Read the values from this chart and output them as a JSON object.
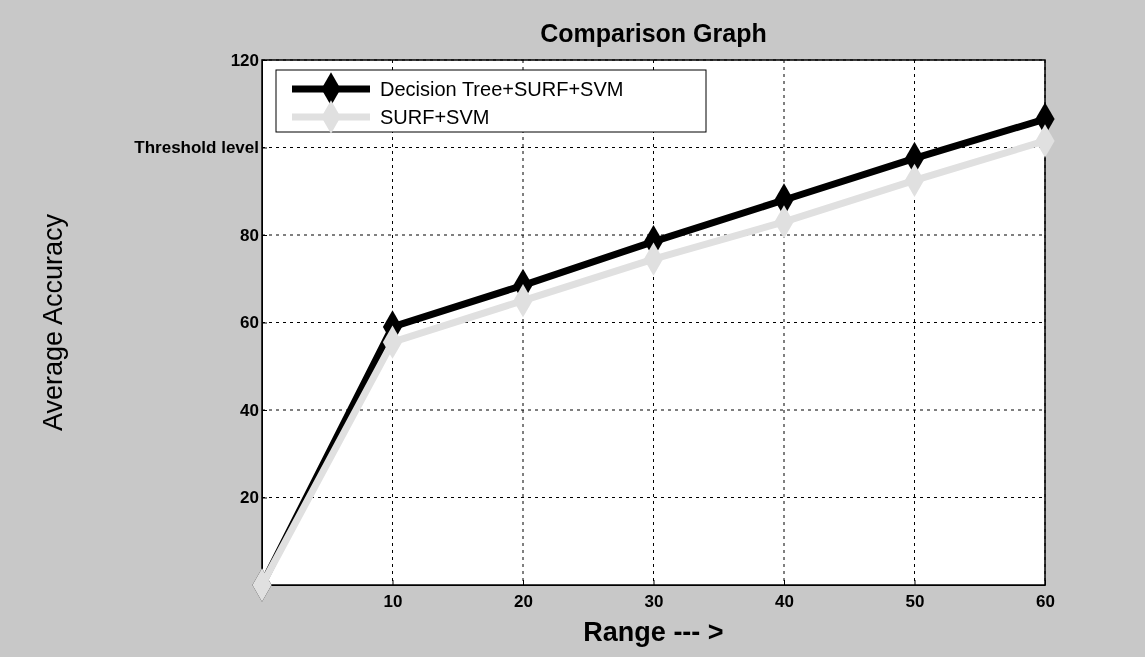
{
  "chart_data": {
    "type": "line",
    "title": "Comparison Graph",
    "xlabel": "Range --- >",
    "ylabel": "Average Accuracy",
    "x": [
      0,
      10,
      20,
      30,
      40,
      50,
      60
    ],
    "series": [
      {
        "name": "Decision Tree+SURF+SVM",
        "color": "#000000",
        "values": [
          0,
          59,
          68.5,
          78.5,
          88,
          97.5,
          106.5
        ]
      },
      {
        "name": "SURF+SVM",
        "color": "#e0e0e0",
        "values": [
          0,
          55.5,
          65,
          74.5,
          83,
          92.5,
          101.5
        ]
      }
    ],
    "xlim": [
      0,
      60
    ],
    "xticks": [
      10,
      20,
      30,
      40,
      50,
      60
    ],
    "ylim": [
      0,
      120
    ],
    "yticks": [
      20,
      40,
      60,
      80,
      {
        "value": 100,
        "label": "Threshold level"
      },
      120
    ],
    "grid": true,
    "legend": "top left",
    "marker": "diamond",
    "line_style": "solid"
  }
}
